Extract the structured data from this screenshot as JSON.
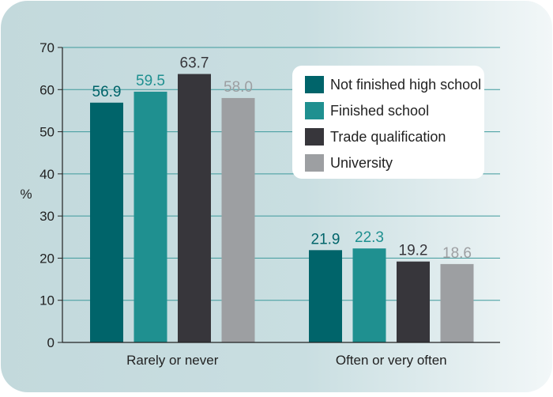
{
  "chart_data": {
    "type": "bar",
    "title": "",
    "xlabel": "",
    "ylabel": "%",
    "ylim": [
      0,
      70
    ],
    "yticks": [
      0,
      10,
      20,
      30,
      40,
      50,
      60,
      70
    ],
    "grid": true,
    "legend_position": "top-right",
    "categories": [
      "Rarely or never",
      "Often or very often"
    ],
    "series": [
      {
        "name": "Not finished high school",
        "color": "#00646a",
        "label_color": "#00646a",
        "values": [
          56.9,
          21.9
        ]
      },
      {
        "name": "Finished school",
        "color": "#1f9090",
        "label_color": "#1f9090",
        "values": [
          59.5,
          22.3
        ]
      },
      {
        "name": "Trade qualification",
        "color": "#37363b",
        "label_color": "#37363b",
        "values": [
          63.7,
          19.2
        ]
      },
      {
        "name": "University",
        "color": "#9d9fa2",
        "label_color": "#9d9fa2",
        "values": [
          58.0,
          18.6
        ]
      }
    ],
    "colors": {
      "background": "#c6dcdf",
      "gridline": "#3e9a9c",
      "axis": "#222222"
    }
  }
}
